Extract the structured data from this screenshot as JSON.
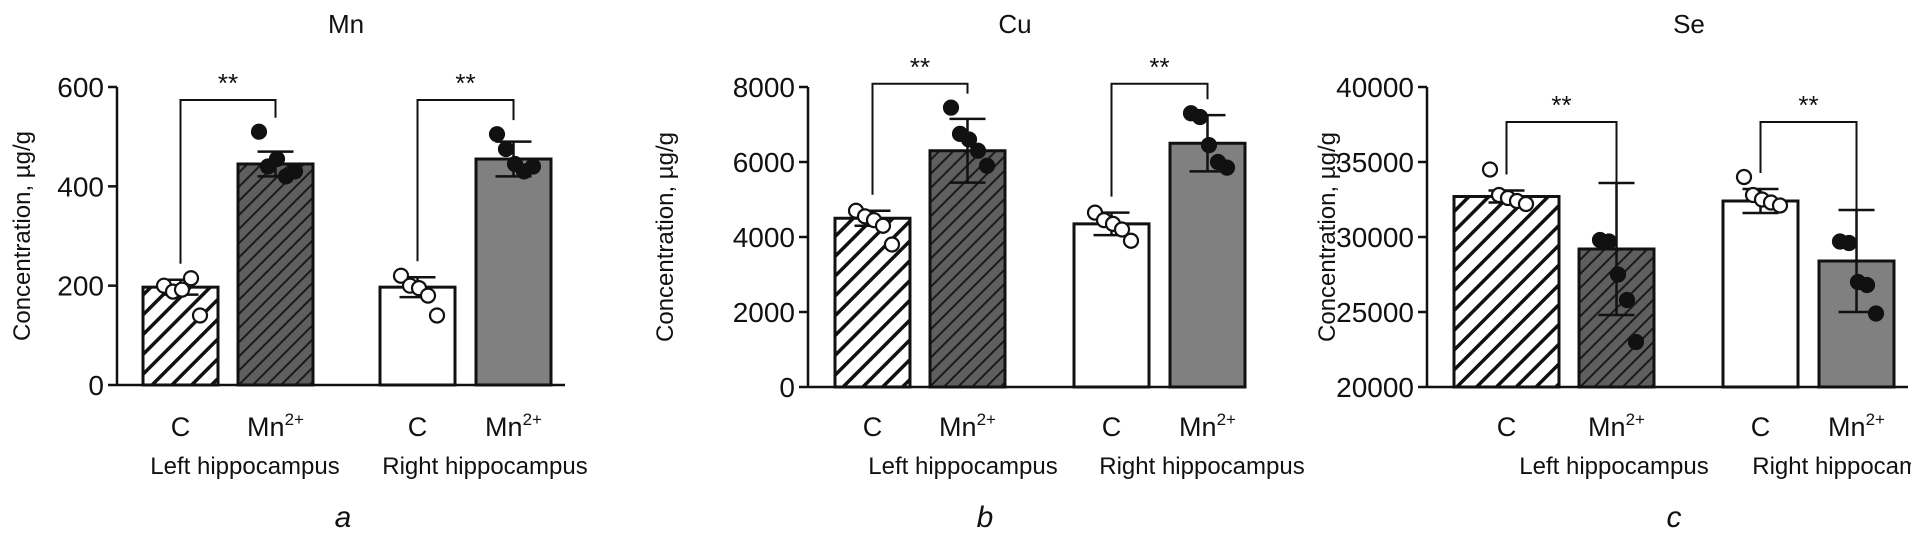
{
  "colors": {
    "axis": "#111111",
    "hatch_light_bg": "#ffffff",
    "hatch_dark_bg": "#5f5f5f",
    "open_bar": "#ffffff",
    "solid_bar": "#808080",
    "point_open": "#ffffff",
    "point_filled": "#111111"
  },
  "chart_data": [
    {
      "type": "bar",
      "title": "Mn",
      "panel_label": "a",
      "ylabel": "Concentration, µg/g",
      "ylim": [
        0,
        600
      ],
      "yticks": [
        "0",
        "200",
        "400",
        "600"
      ],
      "categories": [
        "C",
        "Mn²⁺",
        "C",
        "Mn²⁺"
      ],
      "groups": [
        "Left hippocampus",
        "Right hippocampus"
      ],
      "styles": [
        "hatch-light",
        "hatch-dark",
        "open",
        "solid"
      ],
      "values": [
        197,
        445,
        197,
        455
      ],
      "errors": [
        15,
        25,
        20,
        35
      ],
      "points": [
        [
          200,
          188,
          192,
          215,
          140
        ],
        [
          510,
          440,
          455,
          420,
          430
        ],
        [
          220,
          200,
          195,
          180,
          140
        ],
        [
          505,
          475,
          445,
          430,
          440
        ]
      ],
      "significance": [
        {
          "from": 0,
          "to": 1,
          "label": "**",
          "y": 590
        },
        {
          "from": 2,
          "to": 3,
          "label": "**",
          "y": 590
        }
      ]
    },
    {
      "type": "bar",
      "title": "Cu",
      "panel_label": "b",
      "ylabel": "Concentration, µg/g",
      "ylim": [
        0,
        8000
      ],
      "yticks": [
        "0",
        "2000",
        "4000",
        "6000",
        "8000"
      ],
      "categories": [
        "C",
        "Mn²⁺",
        "C",
        "Mn²⁺"
      ],
      "groups": [
        "Left hippocampus",
        "Right hippocampus"
      ],
      "styles": [
        "hatch-light",
        "hatch-dark",
        "open",
        "solid"
      ],
      "values": [
        4500,
        6300,
        4350,
        6500
      ],
      "errors": [
        200,
        850,
        300,
        750
      ],
      "points": [
        [
          4700,
          4550,
          4450,
          4300,
          3800
        ],
        [
          7450,
          6750,
          6600,
          6300,
          5900
        ],
        [
          4650,
          4450,
          4350,
          4200,
          3900
        ],
        [
          7300,
          7200,
          6450,
          6000,
          5850
        ]
      ],
      "significance": [
        {
          "from": 0,
          "to": 1,
          "label": "**",
          "y": 8300
        },
        {
          "from": 2,
          "to": 3,
          "label": "**",
          "y": 8300
        }
      ]
    },
    {
      "type": "bar",
      "title": "Se",
      "panel_label": "c",
      "ylabel": "Concentration, µg/g",
      "ylim": [
        20000,
        40000
      ],
      "yticks": [
        "20000",
        "25000",
        "30000",
        "35000",
        "40000"
      ],
      "categories": [
        "C",
        "Mn²⁺",
        "C",
        "Mn²⁺"
      ],
      "groups": [
        "Left hippocampus",
        "Right hippocampus"
      ],
      "styles": [
        "hatch-light",
        "hatch-dark",
        "open",
        "solid"
      ],
      "values": [
        32700,
        29200,
        32400,
        28400
      ],
      "errors": [
        400,
        4400,
        800,
        3400
      ],
      "points": [
        [
          34500,
          32800,
          32600,
          32400,
          32200
        ],
        [
          29800,
          29700,
          27500,
          25800,
          23000
        ],
        [
          34000,
          32800,
          32500,
          32300,
          32100
        ],
        [
          29700,
          29600,
          27000,
          26800,
          24900
        ]
      ],
      "significance": [
        {
          "from": 0,
          "to": 1,
          "label": "**",
          "y": 38200
        },
        {
          "from": 2,
          "to": 3,
          "label": "**",
          "y": 38200
        }
      ]
    }
  ]
}
